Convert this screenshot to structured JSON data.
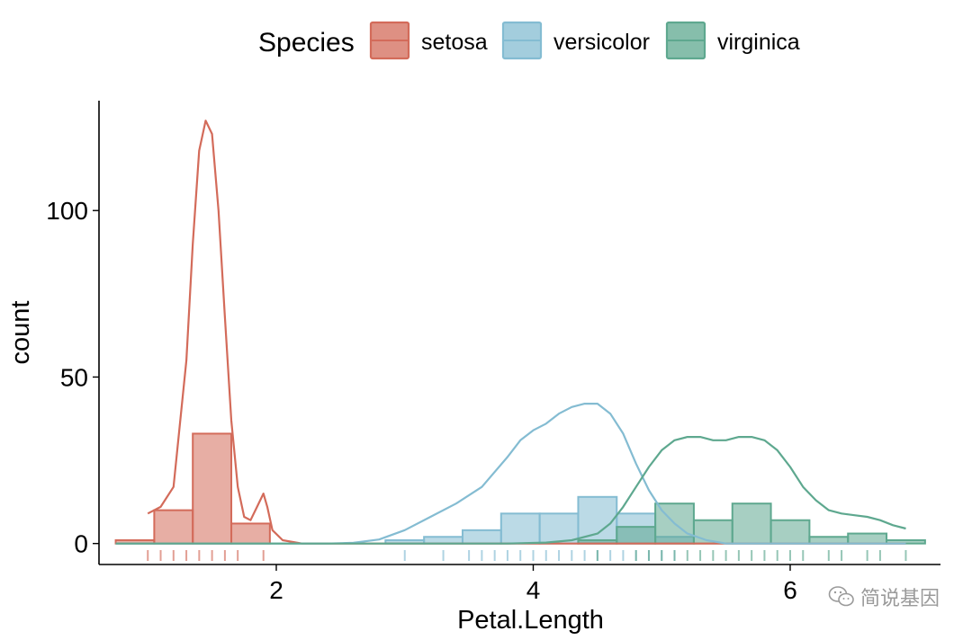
{
  "chart_data": {
    "type": "histogram",
    "xlabel": "Petal.Length",
    "ylabel": "count",
    "xlim": [
      0.62,
      7.17
    ],
    "ylim": [
      -6.3,
      133
    ],
    "xticks": [
      2,
      4,
      6
    ],
    "yticks": [
      0,
      50,
      100
    ],
    "grid": false,
    "legend": {
      "title": "Species",
      "position": "top"
    },
    "bin_width": 0.3,
    "series": [
      {
        "name": "setosa",
        "color": "#D36B5A",
        "bins": [
          {
            "x0": 0.75,
            "x1": 1.05,
            "count": 1
          },
          {
            "x0": 1.05,
            "x1": 1.35,
            "count": 10
          },
          {
            "x0": 1.35,
            "x1": 1.65,
            "count": 33
          },
          {
            "x0": 1.65,
            "x1": 1.95,
            "count": 6
          }
        ],
        "density": [
          [
            1.0,
            9
          ],
          [
            1.1,
            11
          ],
          [
            1.2,
            17
          ],
          [
            1.3,
            55
          ],
          [
            1.35,
            90
          ],
          [
            1.4,
            118
          ],
          [
            1.45,
            127
          ],
          [
            1.5,
            123
          ],
          [
            1.55,
            100
          ],
          [
            1.6,
            68
          ],
          [
            1.65,
            37
          ],
          [
            1.7,
            17
          ],
          [
            1.75,
            8
          ],
          [
            1.8,
            7
          ],
          [
            1.85,
            11
          ],
          [
            1.9,
            15
          ],
          [
            1.93,
            11
          ],
          [
            1.97,
            4
          ],
          [
            2.05,
            1
          ],
          [
            2.2,
            0
          ],
          [
            2.4,
            0
          ],
          [
            2.6,
            0
          ],
          [
            2.8,
            0
          ],
          [
            3.0,
            0
          ],
          [
            3.5,
            0
          ],
          [
            4.0,
            0
          ],
          [
            4.5,
            0
          ],
          [
            5.0,
            0
          ],
          [
            5.5,
            0
          ],
          [
            6.0,
            0
          ],
          [
            6.5,
            0
          ],
          [
            6.9,
            0
          ]
        ],
        "rug": [
          1.0,
          1.1,
          1.2,
          1.3,
          1.4,
          1.5,
          1.6,
          1.7,
          1.9
        ]
      },
      {
        "name": "versicolor",
        "color": "#84BCD2",
        "bins": [
          {
            "x0": 2.85,
            "x1": 3.15,
            "count": 1
          },
          {
            "x0": 3.15,
            "x1": 3.45,
            "count": 2
          },
          {
            "x0": 3.45,
            "x1": 3.75,
            "count": 4
          },
          {
            "x0": 3.75,
            "x1": 4.05,
            "count": 9
          },
          {
            "x0": 4.05,
            "x1": 4.35,
            "count": 9
          },
          {
            "x0": 4.35,
            "x1": 4.65,
            "count": 14
          },
          {
            "x0": 4.65,
            "x1": 4.95,
            "count": 9
          },
          {
            "x0": 4.95,
            "x1": 5.25,
            "count": 2
          }
        ],
        "density": [
          [
            0.75,
            0
          ],
          [
            1.0,
            0
          ],
          [
            1.5,
            0
          ],
          [
            2.0,
            0
          ],
          [
            2.4,
            0
          ],
          [
            2.6,
            0.2
          ],
          [
            2.8,
            1.2
          ],
          [
            3.0,
            4
          ],
          [
            3.2,
            8
          ],
          [
            3.4,
            12
          ],
          [
            3.6,
            17
          ],
          [
            3.8,
            26
          ],
          [
            3.9,
            31
          ],
          [
            4.0,
            34
          ],
          [
            4.1,
            36
          ],
          [
            4.2,
            39
          ],
          [
            4.3,
            41
          ],
          [
            4.4,
            42
          ],
          [
            4.5,
            42
          ],
          [
            4.6,
            39
          ],
          [
            4.7,
            33
          ],
          [
            4.8,
            24
          ],
          [
            4.9,
            16
          ],
          [
            5.0,
            10
          ],
          [
            5.1,
            6
          ],
          [
            5.2,
            3
          ],
          [
            5.35,
            1
          ],
          [
            5.5,
            0
          ],
          [
            6.0,
            0
          ],
          [
            6.5,
            0
          ],
          [
            6.9,
            0
          ]
        ],
        "rug": [
          3.0,
          3.3,
          3.5,
          3.6,
          3.7,
          3.8,
          3.9,
          4.0,
          4.1,
          4.2,
          4.3,
          4.4,
          4.5,
          4.6,
          4.7,
          4.8,
          4.9,
          5.0,
          5.1
        ]
      },
      {
        "name": "virginica",
        "color": "#5EA88F",
        "bins": [
          {
            "x0": 4.35,
            "x1": 4.65,
            "count": 1
          },
          {
            "x0": 4.65,
            "x1": 4.95,
            "count": 5
          },
          {
            "x0": 4.95,
            "x1": 5.25,
            "count": 12
          },
          {
            "x0": 5.25,
            "x1": 5.55,
            "count": 7
          },
          {
            "x0": 5.55,
            "x1": 5.85,
            "count": 12
          },
          {
            "x0": 5.85,
            "x1": 6.15,
            "count": 7
          },
          {
            "x0": 6.15,
            "x1": 6.45,
            "count": 2
          },
          {
            "x0": 6.45,
            "x1": 6.75,
            "count": 3
          },
          {
            "x0": 6.75,
            "x1": 7.05,
            "count": 1
          }
        ],
        "density": [
          [
            0.75,
            0
          ],
          [
            1.0,
            0
          ],
          [
            2.0,
            0
          ],
          [
            3.0,
            0
          ],
          [
            3.8,
            0
          ],
          [
            4.1,
            0.3
          ],
          [
            4.3,
            1
          ],
          [
            4.5,
            3
          ],
          [
            4.6,
            6
          ],
          [
            4.7,
            11
          ],
          [
            4.8,
            17
          ],
          [
            4.9,
            23
          ],
          [
            5.0,
            28
          ],
          [
            5.1,
            31
          ],
          [
            5.2,
            32
          ],
          [
            5.3,
            32
          ],
          [
            5.4,
            31
          ],
          [
            5.5,
            31
          ],
          [
            5.6,
            32
          ],
          [
            5.7,
            32
          ],
          [
            5.8,
            31
          ],
          [
            5.9,
            28
          ],
          [
            6.0,
            23
          ],
          [
            6.1,
            17
          ],
          [
            6.2,
            13
          ],
          [
            6.3,
            10
          ],
          [
            6.4,
            9
          ],
          [
            6.5,
            8.5
          ],
          [
            6.6,
            8
          ],
          [
            6.7,
            7
          ],
          [
            6.8,
            5.5
          ],
          [
            6.9,
            4.5
          ]
        ],
        "rug": [
          4.5,
          4.8,
          4.9,
          5.0,
          5.1,
          5.2,
          5.3,
          5.4,
          5.5,
          5.6,
          5.7,
          5.8,
          5.9,
          6.0,
          6.1,
          6.3,
          6.4,
          6.6,
          6.7,
          6.9
        ]
      }
    ]
  },
  "watermark": {
    "text": "简说基因",
    "icon": "wechat-icon"
  }
}
